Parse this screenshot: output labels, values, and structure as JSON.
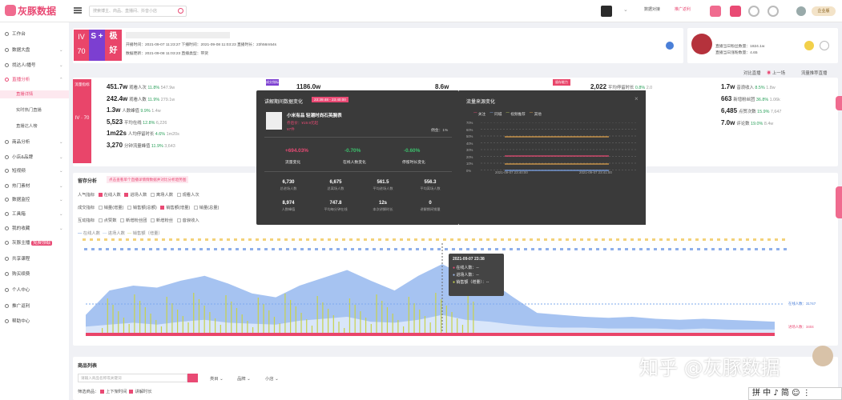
{
  "brand": {
    "name": "灰豚数据"
  },
  "search": {
    "placeholder": "搜索博主、商品、直播间、抖音小店"
  },
  "topbar": {
    "link1": "数据对接",
    "link2": "推广返利",
    "vip": "企业版"
  },
  "sidebar": {
    "items": [
      {
        "label": "工作台"
      },
      {
        "label": "数据大盘"
      },
      {
        "label": "找达人/播号"
      },
      {
        "label": "直播分析"
      }
    ],
    "subs": [
      "直播详情",
      "实时热门直播",
      "直播达人榜"
    ],
    "items2": [
      {
        "label": "商品分析"
      },
      {
        "label": "小店&品牌"
      },
      {
        "label": "短视频"
      },
      {
        "label": "热门素材"
      },
      {
        "label": "数据监控"
      },
      {
        "label": "工具箱"
      },
      {
        "label": "我的收藏"
      },
      {
        "label": "灰豚主播"
      },
      {
        "label": "共享课程"
      },
      {
        "label": "购买续费"
      },
      {
        "label": "个人中心"
      },
      {
        "label": "推广返利"
      },
      {
        "label": "帮助中心"
      }
    ],
    "free_tag": "免费领取"
  },
  "header": {
    "iv": "IV 70",
    "s": "S +",
    "ji": "极 好",
    "row1": "开播时间：2021-09-07 11:23:27    下播时间：2021-09-08 11:03:23    直播时长：23h56m54s",
    "row2": "数据更新：2021-09-08 11:03:23  直播类型：带货"
  },
  "anchor_card": {
    "line1": "直播当日粉丝数量：1824.1w",
    "line2": "直播当日涨粉数量：4.65"
  },
  "actions": {
    "compare": "对比直播",
    "prev": "上一场",
    "share": "流量推荐直播"
  },
  "metrics_left": [
    {
      "v": "451.7w",
      "l": "观看人次",
      "g": "11.8%",
      "n": "547.9w"
    },
    {
      "v": "242.4w",
      "l": "观看人数",
      "g": "11.9%",
      "n": "279.1w"
    },
    {
      "v": "1.3w",
      "l": "人数峰值",
      "g": "9.9%",
      "n": "1.4w"
    },
    {
      "v": "5,523",
      "l": "平均在线",
      "g": "12.8%",
      "n": "6,226"
    },
    {
      "v": "1m22s",
      "l": "人均停留时长",
      "g": "4.6%",
      "n": "1m20s"
    },
    {
      "v": "3,270",
      "l": "分钟流量峰值",
      "g": "11.9%",
      "n": "3,643"
    }
  ],
  "pink_label": "流量指标",
  "pink_iv": "IV · 70",
  "mid_top": {
    "v1": "1186.0w",
    "v2": "8.6w",
    "tag": "成交指标",
    "tag2": "留存能力"
  },
  "metrics_right": [
    {
      "v": "2,022",
      "l": "平均停留时长",
      "g": "0.8%",
      "n": "2.0"
    },
    {
      "v": "1.7w",
      "l": "音浪收入",
      "g": "8.5%",
      "n": "1.8w"
    },
    {
      "v": "663",
      "l": "新增粉丝团",
      "g": "36.8%",
      "n": "1.06k"
    },
    {
      "v": "6,485",
      "l": "点赞次数",
      "g": "15.9%",
      "n": "7,647"
    },
    {
      "v": "7.0w",
      "l": "评论数",
      "g": "19.0%",
      "n": "8.4w"
    }
  ],
  "popup": {
    "title": "讲解期间数据变化",
    "range": "23:39:48 - 23:40:00",
    "product": "小米有品 轻潮时尚石英腕表",
    "price": "券后价：¥19.9元起",
    "tag": "¥7件",
    "share_label": "佣金：1%",
    "changes": [
      {
        "v": "+694.03%",
        "l": "流量变化"
      },
      {
        "v": "-0.70%",
        "l": "在线人数变化"
      },
      {
        "v": "-0.60%",
        "l": "停留时长变化"
      }
    ],
    "nums": [
      {
        "v": "6,730",
        "l": "总进场人数"
      },
      {
        "v": "6,675",
        "l": "总离场人数"
      },
      {
        "v": "561.5",
        "l": "平均进场人数"
      },
      {
        "v": "556.3",
        "l": "平均离场人数"
      },
      {
        "v": "8,974",
        "l": "人数峰值"
      },
      {
        "v": "747.8",
        "l": "平均每分钟在线"
      },
      {
        "v": "12s",
        "l": "本次讲解时长"
      },
      {
        "v": "0",
        "l": "讲解期间销量"
      }
    ]
  },
  "popup2": {
    "title": "流量来源变化",
    "legend": [
      "关注",
      "同城",
      "视频推荐",
      "其他"
    ],
    "yticks": [
      "70%",
      "60%",
      "50%",
      "40%",
      "30%",
      "20%",
      "10%",
      "0%"
    ],
    "x1": "2021-09-07 23:40:00",
    "x2": "2021-09-07 23:41:00"
  },
  "chart": {
    "title": "留存分析",
    "hint": "点击查看单个直播详情情数据并对比分析趋势图",
    "rows": [
      {
        "k": "人气指标",
        "opts": [
          "在线人数",
          "进场人数",
          "离场人数",
          "观看人次"
        ]
      },
      {
        "k": "成交指标",
        "opts": [
          "销量(增量)",
          "销售额(总额)",
          "销售额(增量)",
          "销量(总量)"
        ]
      },
      {
        "k": "互动指标",
        "opts": [
          "点赞数",
          "新增粉丝团",
          "新增粉丝",
          "音浪收入"
        ]
      }
    ],
    "legend": [
      "在线人数",
      "进场人数",
      "销售额（增量）"
    ],
    "series": {
      "online": [
        0.2,
        0.45,
        0.5,
        0.48,
        0.55,
        0.6,
        0.52,
        0.42,
        0.38,
        0.5,
        0.58,
        0.66,
        0.55,
        0.45,
        0.6,
        0.72,
        0.6,
        0.55,
        0.38,
        0.22,
        0.2,
        0.18,
        0.17,
        0.18,
        0.16,
        0.15,
        0.16,
        0.15,
        0.14,
        0.13
      ],
      "enter": [
        0.08,
        0.1,
        0.12,
        0.1,
        0.13,
        0.15,
        0.12,
        0.11,
        0.1,
        0.14,
        0.16,
        0.18,
        0.13,
        0.12,
        0.15,
        0.2,
        0.15,
        0.13,
        0.1,
        0.08,
        0.07,
        0.07,
        0.06,
        0.06,
        0.06,
        0.05,
        0.06,
        0.05,
        0.05,
        0.05
      ]
    },
    "tip": {
      "time": "2021-09-07 23:38",
      "a": "在线人数：--",
      "b": "进场人数：--",
      "c": "销售额（增量）：--"
    },
    "right1": "在线人数：31747",
    "right2": "进场人数：3404"
  },
  "goods": {
    "title": "商品列表",
    "placeholder": "请输入商品名称或关键词",
    "f1": "类目",
    "f2": "品牌",
    "f3": "价格",
    "f4": "小店",
    "filter": "筛选商品：",
    "opt1": "上下架时间",
    "opt2": "讲解时长"
  },
  "watermark": "知乎 @灰豚数据",
  "ime": "拼 中 ♪ 简 ☺ ⋮"
}
